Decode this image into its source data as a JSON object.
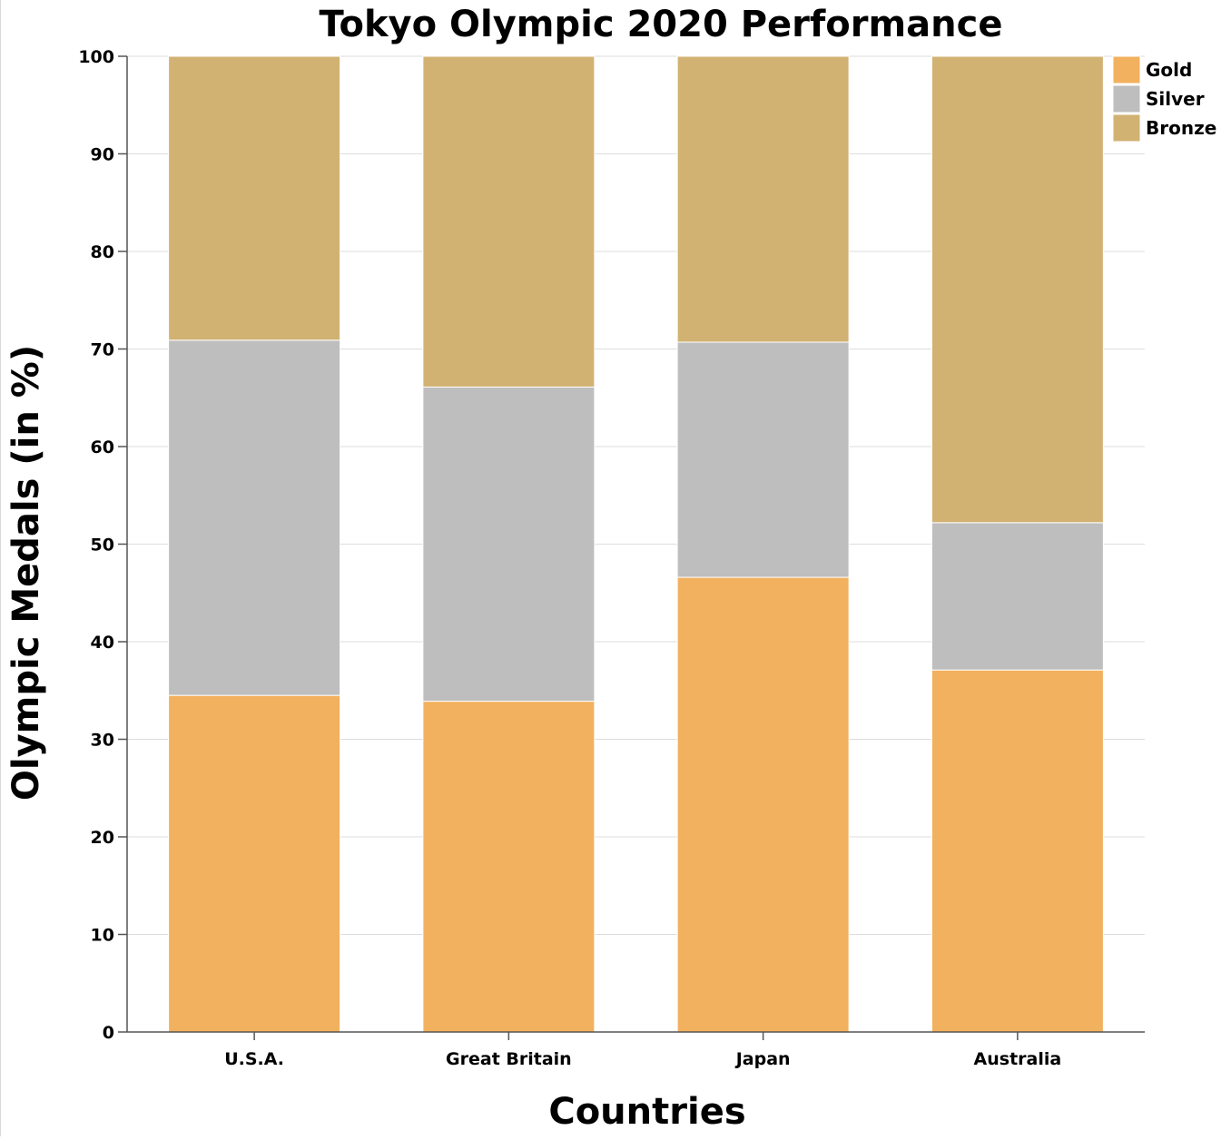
{
  "chart_data": {
    "type": "bar",
    "stacked": true,
    "title": "Tokyo Olympic 2020 Performance",
    "xlabel": "Countries",
    "ylabel": "Olympic Medals (in %)",
    "ylim": [
      0,
      100
    ],
    "yticks": [
      0,
      10,
      20,
      30,
      40,
      50,
      60,
      70,
      80,
      90,
      100
    ],
    "grid": true,
    "legend_position": "top-right",
    "categories": [
      "U.S.A.",
      "Great Britain",
      "Japan",
      "Australia"
    ],
    "series": [
      {
        "name": "Gold",
        "color": "#f2b15e",
        "values": [
          34.5,
          33.9,
          46.6,
          37.1
        ]
      },
      {
        "name": "Silver",
        "color": "#bebebe",
        "values": [
          36.4,
          32.2,
          24.1,
          15.1
        ]
      },
      {
        "name": "Bronze",
        "color": "#d2b272",
        "values": [
          29.1,
          33.9,
          29.3,
          47.8
        ]
      }
    ]
  }
}
